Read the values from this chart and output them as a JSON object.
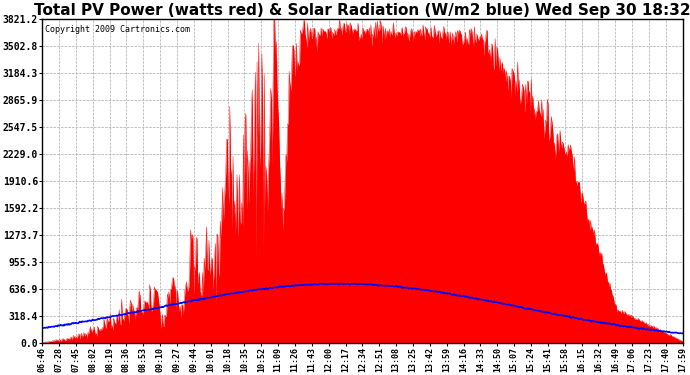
{
  "title": "Total PV Power (watts red) & Solar Radiation (W/m2 blue) Wed Sep 30 18:32",
  "title_fontsize": 11,
  "copyright_text": "Copyright 2009 Cartronics.com",
  "bg_color": "#ffffff",
  "plot_bg_color": "#ffffff",
  "grid_color": "#aaaaaa",
  "yticks": [
    0.0,
    318.4,
    636.9,
    955.3,
    1273.7,
    1592.2,
    1910.6,
    2229.0,
    2547.5,
    2865.9,
    3184.3,
    3502.8,
    3821.2
  ],
  "ymax": 3821.2,
  "solar_max_wm2": 700,
  "xtick_labels": [
    "06:46",
    "07:28",
    "07:45",
    "08:02",
    "08:19",
    "08:36",
    "08:53",
    "09:10",
    "09:27",
    "09:44",
    "10:01",
    "10:18",
    "10:35",
    "10:52",
    "11:09",
    "11:26",
    "11:43",
    "12:00",
    "12:17",
    "12:34",
    "12:51",
    "13:08",
    "13:25",
    "13:42",
    "13:59",
    "14:16",
    "14:33",
    "14:50",
    "15:07",
    "15:24",
    "15:41",
    "15:58",
    "16:15",
    "16:32",
    "16:49",
    "17:06",
    "17:23",
    "17:40",
    "17:59"
  ],
  "pv_color": "#ff0000",
  "solar_color": "#0000ff",
  "line_width": 1.2,
  "n_points": 800
}
